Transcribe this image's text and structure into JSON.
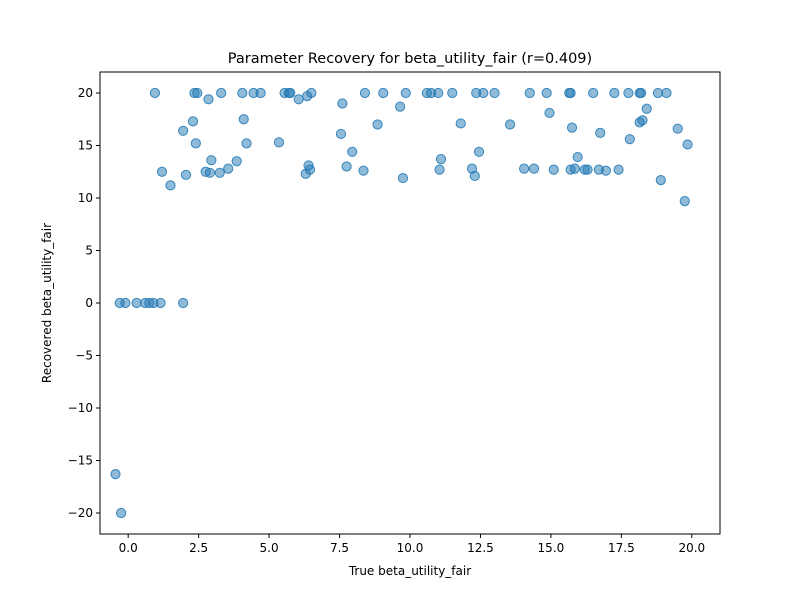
{
  "chart_data": {
    "type": "scatter",
    "title": "Parameter Recovery for beta_utility_fair (r=0.409)",
    "xlabel": "True beta_utility_fair",
    "ylabel": "Recovered beta_utility_fair",
    "xlim": [
      -1.0,
      21.0
    ],
    "ylim": [
      -22.0,
      22.0
    ],
    "xticks": [
      0.0,
      2.5,
      5.0,
      7.5,
      10.0,
      12.5,
      15.0,
      17.5,
      20.0
    ],
    "xtick_labels": [
      "0.0",
      "2.5",
      "5.0",
      "7.5",
      "10.0",
      "12.5",
      "15.0",
      "17.5",
      "20.0"
    ],
    "yticks": [
      -20,
      -15,
      -10,
      -5,
      0,
      5,
      10,
      15,
      20
    ],
    "ytick_labels": [
      "−20",
      "−15",
      "−10",
      "−5",
      "0",
      "5",
      "10",
      "15",
      "20"
    ],
    "grid": false,
    "marker_color": "#1f77b4",
    "marker_opacity": 0.5,
    "points": [
      [
        -0.45,
        -16.3
      ],
      [
        -0.25,
        -20.0
      ],
      [
        -0.3,
        0.0
      ],
      [
        -0.1,
        0.0
      ],
      [
        0.3,
        0.0
      ],
      [
        0.6,
        0.0
      ],
      [
        0.75,
        0.0
      ],
      [
        0.9,
        0.0
      ],
      [
        1.15,
        0.0
      ],
      [
        1.95,
        0.0
      ],
      [
        0.95,
        20.0
      ],
      [
        1.2,
        12.5
      ],
      [
        1.5,
        11.2
      ],
      [
        1.95,
        16.4
      ],
      [
        2.05,
        12.2
      ],
      [
        2.3,
        17.3
      ],
      [
        2.35,
        20.0
      ],
      [
        2.45,
        20.0
      ],
      [
        2.4,
        15.2
      ],
      [
        2.75,
        12.5
      ],
      [
        2.85,
        19.4
      ],
      [
        2.9,
        12.4
      ],
      [
        2.95,
        13.6
      ],
      [
        3.25,
        12.4
      ],
      [
        3.3,
        20.0
      ],
      [
        3.55,
        12.8
      ],
      [
        3.85,
        13.5
      ],
      [
        4.05,
        20.0
      ],
      [
        4.1,
        17.5
      ],
      [
        4.2,
        15.2
      ],
      [
        4.45,
        20.0
      ],
      [
        4.7,
        20.0
      ],
      [
        5.35,
        15.3
      ],
      [
        5.55,
        20.0
      ],
      [
        5.7,
        20.0
      ],
      [
        5.75,
        20.0
      ],
      [
        6.05,
        19.4
      ],
      [
        6.3,
        12.3
      ],
      [
        6.35,
        19.7
      ],
      [
        6.4,
        13.1
      ],
      [
        6.45,
        12.7
      ],
      [
        6.5,
        20.0
      ],
      [
        7.55,
        16.1
      ],
      [
        7.6,
        19.0
      ],
      [
        7.75,
        13.0
      ],
      [
        7.95,
        14.4
      ],
      [
        8.35,
        12.6
      ],
      [
        8.4,
        20.0
      ],
      [
        8.85,
        17.0
      ],
      [
        9.05,
        20.0
      ],
      [
        9.65,
        18.7
      ],
      [
        9.75,
        11.9
      ],
      [
        9.85,
        20.0
      ],
      [
        10.6,
        20.0
      ],
      [
        10.75,
        20.0
      ],
      [
        11.0,
        20.0
      ],
      [
        11.05,
        12.7
      ],
      [
        11.1,
        13.7
      ],
      [
        11.5,
        20.0
      ],
      [
        11.8,
        17.1
      ],
      [
        12.2,
        12.8
      ],
      [
        12.3,
        12.1
      ],
      [
        12.35,
        20.0
      ],
      [
        12.45,
        14.4
      ],
      [
        12.6,
        20.0
      ],
      [
        13.0,
        20.0
      ],
      [
        13.55,
        17.0
      ],
      [
        14.05,
        12.8
      ],
      [
        14.25,
        20.0
      ],
      [
        14.4,
        12.8
      ],
      [
        14.85,
        20.0
      ],
      [
        14.95,
        18.1
      ],
      [
        15.1,
        12.7
      ],
      [
        15.65,
        20.0
      ],
      [
        15.7,
        20.0
      ],
      [
        15.7,
        12.7
      ],
      [
        15.75,
        16.7
      ],
      [
        15.85,
        12.8
      ],
      [
        15.95,
        13.9
      ],
      [
        16.2,
        12.7
      ],
      [
        16.3,
        12.7
      ],
      [
        16.5,
        20.0
      ],
      [
        16.7,
        12.7
      ],
      [
        16.75,
        16.2
      ],
      [
        16.95,
        12.6
      ],
      [
        17.25,
        20.0
      ],
      [
        17.4,
        12.7
      ],
      [
        17.75,
        20.0
      ],
      [
        17.8,
        15.6
      ],
      [
        18.15,
        20.0
      ],
      [
        18.2,
        20.0
      ],
      [
        18.15,
        17.2
      ],
      [
        18.25,
        17.4
      ],
      [
        18.4,
        18.5
      ],
      [
        18.8,
        20.0
      ],
      [
        18.9,
        11.7
      ],
      [
        19.1,
        20.0
      ],
      [
        19.5,
        16.6
      ],
      [
        19.75,
        9.7
      ],
      [
        19.85,
        15.1
      ]
    ]
  }
}
